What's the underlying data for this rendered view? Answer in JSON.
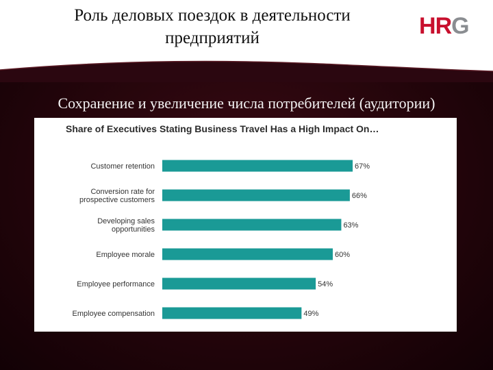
{
  "slide": {
    "title": "Роль деловых поездок в деятельности предприятий",
    "subtitle": "Сохранение и увеличение числа потребителей (аудитории)",
    "logo_text": "HRG",
    "colors": {
      "background_dark": "#24050b",
      "logo_red": "#c8102e",
      "logo_gray": "#8a8d91",
      "bar_teal": "#1a9a96"
    }
  },
  "chart_data": {
    "type": "bar",
    "orientation": "horizontal",
    "title": "Share of Executives Stating Business Travel Has a High Impact On…",
    "categories": [
      [
        "Customer retention"
      ],
      [
        "Conversion rate for",
        "prospective customers"
      ],
      [
        "Developing sales",
        "opportunities"
      ],
      [
        "Employee morale"
      ],
      [
        "Employee performance"
      ],
      [
        "Employee compensation"
      ]
    ],
    "values": [
      67,
      66,
      63,
      60,
      54,
      49
    ],
    "value_labels": [
      "67%",
      "66%",
      "63%",
      "60%",
      "54%",
      "49%"
    ],
    "unit": "%",
    "xlim": [
      0,
      100
    ],
    "grid": false,
    "axes_visible": false
  }
}
